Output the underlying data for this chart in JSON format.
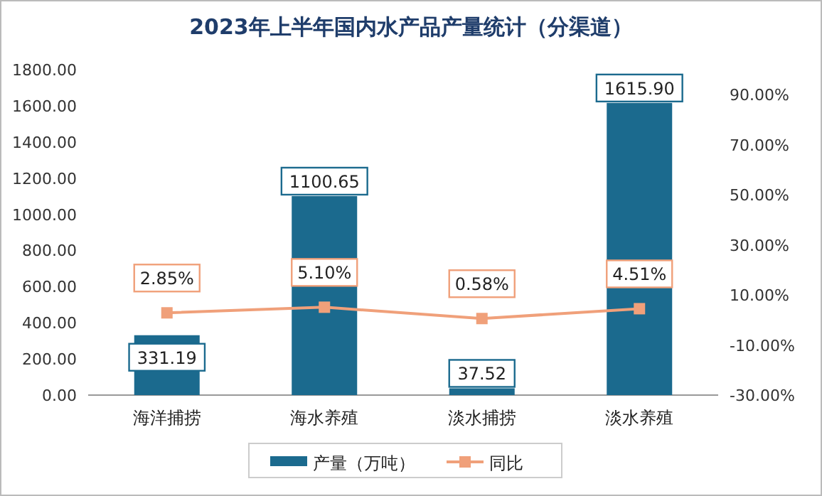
{
  "chart_data": {
    "type": "bar",
    "title": "2023年上半年国内水产品产量统计（分渠道）",
    "categories": [
      "海洋捕捞",
      "海水养殖",
      "淡水捕捞",
      "淡水养殖"
    ],
    "series": [
      {
        "name": "产量（万吨）",
        "type": "bar",
        "color": "#1b6a8e",
        "values": [
          331.19,
          1100.65,
          37.52,
          1615.9
        ],
        "value_labels": [
          "331.19",
          "1100.65",
          "37.52",
          "1615.90"
        ]
      },
      {
        "name": "同比",
        "type": "line",
        "axis": "y2",
        "color": "#f0a07a",
        "marker": "square",
        "values": [
          2.85,
          5.1,
          0.58,
          4.51
        ],
        "value_labels": [
          "2.85%",
          "5.10%",
          "0.58%",
          "4.51%"
        ]
      }
    ],
    "ylim": [
      0,
      1800
    ],
    "yticks": [
      {
        "value": 0,
        "label": "0.00"
      },
      {
        "value": 200,
        "label": "200.00"
      },
      {
        "value": 400,
        "label": "400.00"
      },
      {
        "value": 600,
        "label": "600.00"
      },
      {
        "value": 800,
        "label": "800.00"
      },
      {
        "value": 1000,
        "label": "1000.00"
      },
      {
        "value": 1200,
        "label": "1200.00"
      },
      {
        "value": 1400,
        "label": "1400.00"
      },
      {
        "value": 1600,
        "label": "1600.00"
      },
      {
        "value": 1800,
        "label": "1800.00"
      }
    ],
    "y2lim": [
      -30,
      100
    ],
    "y2ticks": [
      {
        "value": -30,
        "label": "-30.00%"
      },
      {
        "value": -10,
        "label": "-10.00%"
      },
      {
        "value": 10,
        "label": "10.00%"
      },
      {
        "value": 30,
        "label": "30.00%"
      },
      {
        "value": 50,
        "label": "50.00%"
      },
      {
        "value": 70,
        "label": "70.00%"
      },
      {
        "value": 90,
        "label": "90.00%"
      }
    ],
    "legend": "bottom"
  }
}
